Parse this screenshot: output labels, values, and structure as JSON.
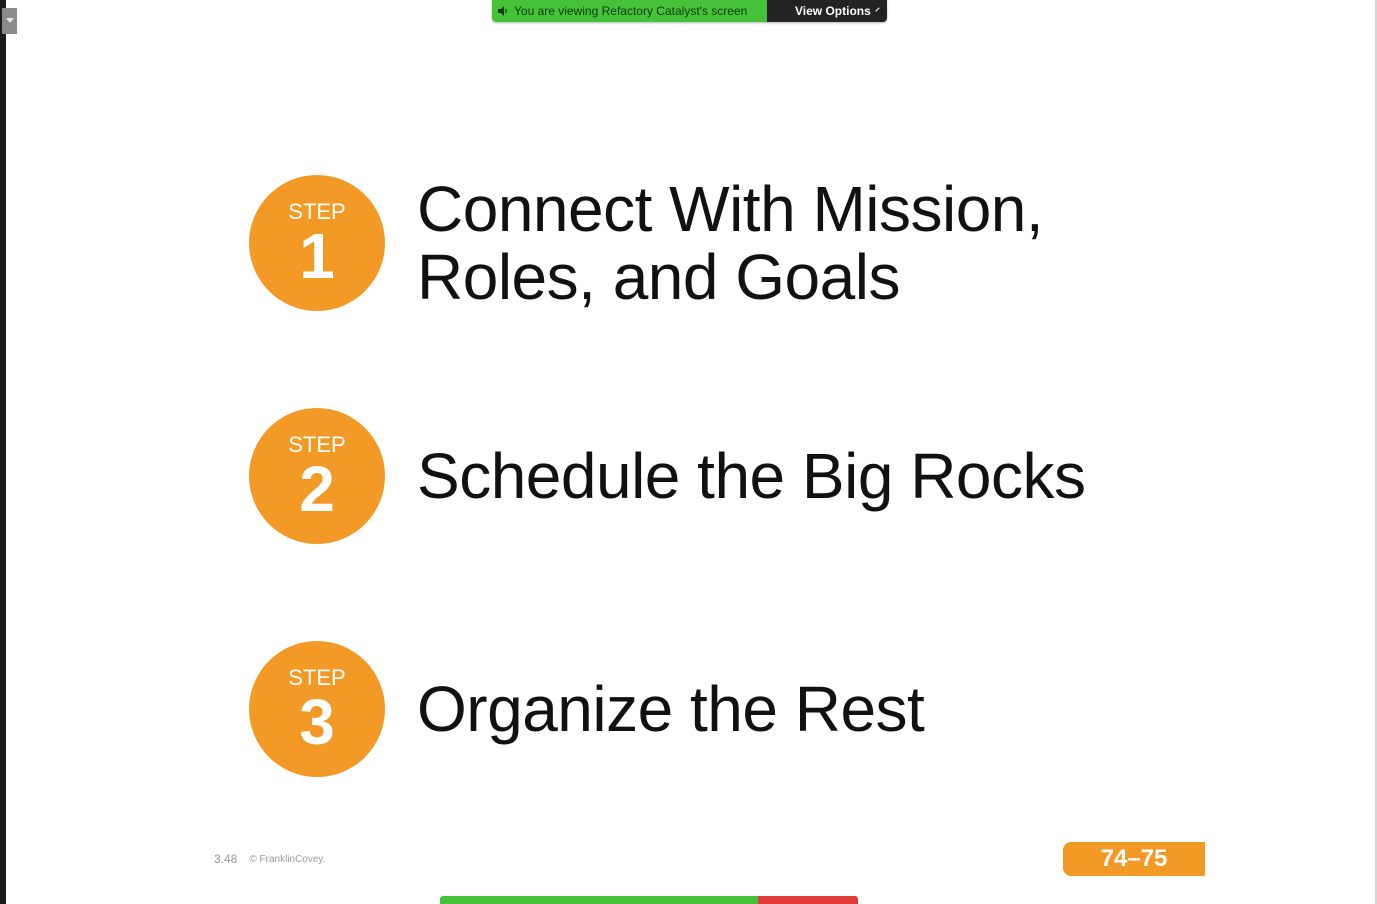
{
  "share_banner": {
    "status_text": "You are viewing Refactory Catalyst's screen",
    "view_options_label": "View Options",
    "icons": {
      "status": "speaker-icon",
      "options": "chevron-down-icon"
    }
  },
  "slide": {
    "steps": [
      {
        "word": "STEP",
        "number": "1",
        "line1": "Connect With Mission,",
        "line2": "Roles, and Goals"
      },
      {
        "word": "STEP",
        "number": "2",
        "line1": "Schedule the Big Rocks",
        "line2": ""
      },
      {
        "word": "STEP",
        "number": "3",
        "line1": "Organize the Rest",
        "line2": ""
      }
    ],
    "footer": {
      "slide_number": "3.48",
      "copyright": "© FranklinCovey."
    },
    "page_reference": "74–75"
  },
  "colors": {
    "accent_orange": "#f29a25",
    "banner_green": "#45c23a",
    "banner_dark": "#232323",
    "stop_red": "#e03a3a"
  }
}
